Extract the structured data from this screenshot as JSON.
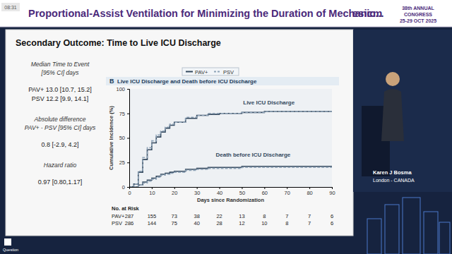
{
  "chart_data": {
    "type": "line",
    "panel_label": "B",
    "title": "Live ICU Discharge and Death before ICU Discharge",
    "x_label": "Days since Randomization",
    "y_label": "Cumulative Incidence (%)",
    "x": [
      0,
      2,
      4,
      6,
      8,
      10,
      12,
      14,
      16,
      18,
      20,
      25,
      30,
      35,
      40,
      50,
      60,
      70,
      80,
      90
    ],
    "series": [
      {
        "name": "PAV+",
        "color": "#34495e",
        "line_style": "solid",
        "values": [
          0,
          3,
          15,
          28,
          38,
          45,
          51,
          56,
          60,
          63,
          66,
          70,
          73,
          74,
          75,
          76,
          77,
          77,
          77,
          77
        ]
      },
      {
        "name": "PSV",
        "color": "#8ea3b7",
        "line_style": "dashed",
        "values": [
          0,
          3,
          16,
          30,
          40,
          47,
          53,
          57,
          61,
          64,
          66,
          71,
          73,
          75,
          75,
          76,
          77,
          77,
          77,
          77
        ]
      },
      {
        "name": "PAV+",
        "color": "#34495e",
        "line_style": "solid",
        "values": [
          0,
          0,
          2,
          5,
          7,
          9,
          11,
          13,
          14,
          15,
          16,
          18,
          19,
          20,
          20,
          21,
          21,
          21,
          21,
          21
        ]
      },
      {
        "name": "PSV",
        "color": "#8ea3b7",
        "line_style": "dashed",
        "values": [
          0,
          0,
          2,
          4,
          6,
          8,
          10,
          12,
          13,
          14,
          15,
          17,
          18,
          19,
          19,
          20,
          20,
          20,
          20,
          20
        ]
      }
    ],
    "annotations": [
      "Live ICU Discharge",
      "Death before ICU Discharge"
    ],
    "xlim": [
      0,
      90
    ],
    "xticks": [
      0,
      10,
      20,
      30,
      40,
      50,
      60,
      70,
      80,
      90
    ],
    "ylim": [
      0,
      100
    ],
    "yticks": [
      0,
      25,
      50,
      75,
      100
    ],
    "grid": false,
    "legend": "top",
    "risk_table": {
      "title": "No. at Risk",
      "rows": [
        {
          "name": "PAV+",
          "values": [
            287,
            155,
            73,
            38,
            22,
            13,
            8,
            7,
            7,
            6
          ]
        },
        {
          "name": "PSV",
          "values": [
            286,
            144,
            75,
            40,
            28,
            12,
            10,
            8,
            7,
            6
          ]
        }
      ]
    }
  },
  "slide": {
    "time": "08:31",
    "header_title": "Proportional-Assist Ventilation for Minimizing the Duration of Mechanic...",
    "logo": "esicm",
    "congress": [
      "38th ANNUAL",
      "CONGRESS",
      "25-29 OCT 2025"
    ],
    "title": "Secondary Outcome:  Time to Live ICU Discharge",
    "stats": [
      {
        "heading": [
          "Median Time to Event",
          "[95% CI] days"
        ],
        "lines": [
          "PAV+ 13.0 [10.7, 15.2]",
          "PSV  12.2 [9.9, 14.1]"
        ]
      },
      {
        "heading": [
          "Absolute difference",
          "PAV+ - PSV [95% CI] days"
        ],
        "lines": [
          "0.8 [-2.9, 4.2]"
        ]
      },
      {
        "heading": [
          "Hazard ratio"
        ],
        "lines": [
          "0.97 [0.80,1.17]"
        ]
      }
    ],
    "speaker": {
      "name": "Karen J Bosma",
      "location": "London - CANADA"
    },
    "footer": "Question"
  }
}
